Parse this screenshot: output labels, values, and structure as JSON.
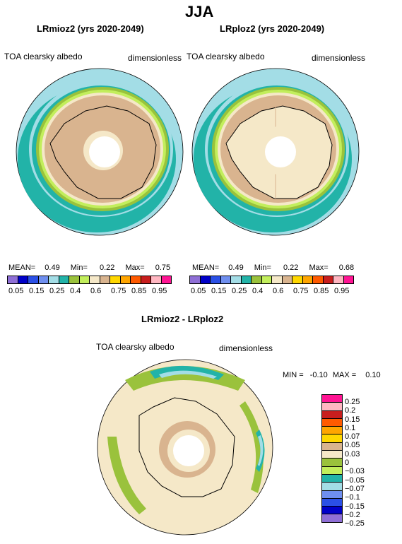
{
  "header": {
    "season": "JJA"
  },
  "panels": [
    {
      "id": "left",
      "title": "LRmioz2 (yrs 2020-2049)",
      "variable": "TOA clearsky albedo",
      "units": "dimensionless",
      "stats": {
        "mean_label": "MEAN=",
        "mean": "0.49",
        "min_label": "Min=",
        "min": "0.22",
        "max_label": "Max=",
        "max": "0.75"
      }
    },
    {
      "id": "right",
      "title": "LRploz2 (yrs 2020-2049)",
      "variable": "TOA clearsky albedo",
      "units": "dimensionless",
      "stats": {
        "mean_label": "MEAN=",
        "mean": "0.49",
        "min_label": "Min=",
        "min": "0.22",
        "max_label": "Max=",
        "max": "0.68"
      }
    }
  ],
  "top_colorbar": {
    "colors": [
      "#8f6fd6",
      "#0000c8",
      "#2b50e6",
      "#6f8fef",
      "#a3dde6",
      "#22b3a8",
      "#9ac23c",
      "#c2ee5c",
      "#f5e8c8",
      "#d9b48f",
      "#ffd700",
      "#ffa500",
      "#ff5a00",
      "#c81e1e",
      "#ffb6c1",
      "#ff1493"
    ],
    "labels": [
      "0.05",
      "0.15",
      "0.25",
      "0.4",
      "0.6",
      "0.75",
      "0.85",
      "0.95"
    ]
  },
  "diff_panel": {
    "title": "LRmioz2 - LRploz2",
    "variable": "TOA clearsky albedo",
    "units": "dimensionless",
    "stats": {
      "min_label": "MIN =",
      "min": "-0.10",
      "max_label": "MAX =",
      "max": "0.10"
    }
  },
  "diff_colorbar": {
    "colors": [
      "#ff1493",
      "#ffb6c1",
      "#c81e1e",
      "#ff5a00",
      "#ffa500",
      "#ffd700",
      "#d9b48f",
      "#f5e8c8",
      "#9ac23c",
      "#c2ee5c",
      "#22b3a8",
      "#a3dde6",
      "#6f8fef",
      "#2b50e6",
      "#0000c8",
      "#8f6fd6"
    ],
    "labels": [
      "0.25",
      "0.2",
      "0.15",
      "0.1",
      "0.07",
      "0.05",
      "0.03",
      "0",
      "−0.03",
      "−0.05",
      "−0.07",
      "−0.1",
      "−0.15",
      "−0.2",
      "−0.25"
    ]
  }
}
